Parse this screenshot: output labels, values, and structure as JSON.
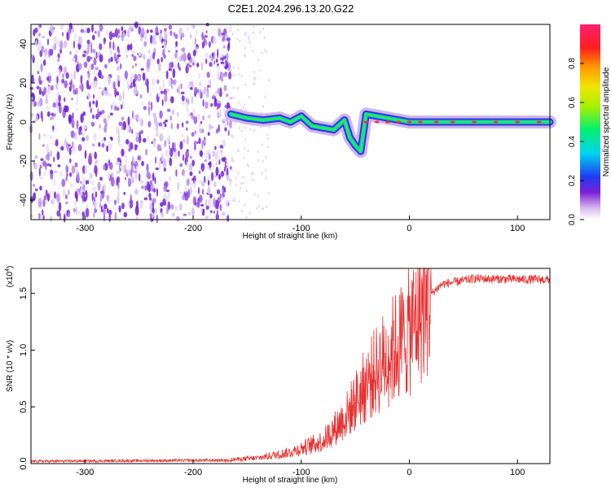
{
  "title": "C2E1.2024.296.13.20.G22",
  "chart_data": [
    {
      "type": "heatmap",
      "xlabel": "Height of straight line (km)",
      "ylabel": "Frequency (Hz)",
      "xlim": [
        -350,
        130
      ],
      "ylim": [
        -50,
        50
      ],
      "xticks": [
        -300,
        -200,
        -100,
        0,
        100
      ],
      "yticks": [
        -40,
        -20,
        0,
        20,
        40
      ],
      "colorbar": {
        "label": "Normalized spectral amplitude",
        "range": [
          0,
          1
        ],
        "ticks": [
          "0.0",
          "0.2",
          "0.4",
          "0.6",
          "0.8"
        ]
      },
      "noise_region_x": [
        -350,
        -165
      ],
      "signal_track": [
        {
          "x": -165,
          "y": 4
        },
        {
          "x": -150,
          "y": 2
        },
        {
          "x": -135,
          "y": 1
        },
        {
          "x": -120,
          "y": 2
        },
        {
          "x": -110,
          "y": 0
        },
        {
          "x": -100,
          "y": 3
        },
        {
          "x": -90,
          "y": -2
        },
        {
          "x": -80,
          "y": -3
        },
        {
          "x": -70,
          "y": -4
        },
        {
          "x": -60,
          "y": 1
        },
        {
          "x": -55,
          "y": -8
        },
        {
          "x": -50,
          "y": -12
        },
        {
          "x": -45,
          "y": -15
        },
        {
          "x": -40,
          "y": 4
        },
        {
          "x": -30,
          "y": 3
        },
        {
          "x": -20,
          "y": 2
        },
        {
          "x": -10,
          "y": 1
        },
        {
          "x": 0,
          "y": 0
        },
        {
          "x": 50,
          "y": 0
        },
        {
          "x": 130,
          "y": 0
        }
      ]
    },
    {
      "type": "line",
      "xlabel": "Height of straight line (km)",
      "ylabel": "SNR (10 * v/v)",
      "yscale_label": "(x10",
      "yscale_exp": "4",
      "scale_note": ")",
      "xlim": [
        -350,
        130
      ],
      "ylim": [
        0,
        1.72
      ],
      "xticks": [
        -300,
        -200,
        -100,
        0,
        100
      ],
      "yticks": [
        "0.0",
        "0.5",
        "1.0",
        "1.5"
      ],
      "color": "#e83030",
      "envelope": [
        {
          "x": -350,
          "y": 0.02
        },
        {
          "x": -170,
          "y": 0.03
        },
        {
          "x": -140,
          "y": 0.05
        },
        {
          "x": -110,
          "y": 0.1
        },
        {
          "x": -80,
          "y": 0.2
        },
        {
          "x": -60,
          "y": 0.4
        },
        {
          "x": -40,
          "y": 0.7
        },
        {
          "x": -20,
          "y": 0.95
        },
        {
          "x": 0,
          "y": 1.15
        },
        {
          "x": 15,
          "y": 1.45
        },
        {
          "x": 30,
          "y": 1.58
        },
        {
          "x": 60,
          "y": 1.63
        },
        {
          "x": 130,
          "y": 1.62
        }
      ]
    }
  ]
}
